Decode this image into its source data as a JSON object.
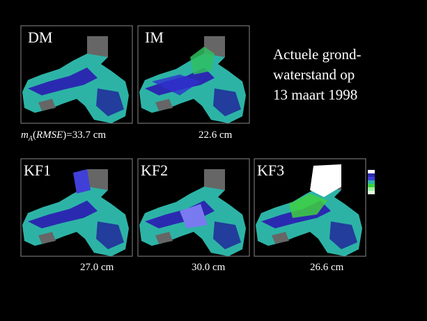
{
  "title": {
    "lines": [
      "Actuele grond-",
      "waterstand op",
      "13 maart 1998"
    ]
  },
  "panels": [
    {
      "label": "DM"
    },
    {
      "label": "IM",
      "caption": "22.6 cm"
    },
    {
      "label": "KF1",
      "caption": "27.0 cm"
    },
    {
      "label": "KF2",
      "caption": "30.0 cm"
    },
    {
      "label": "KF3",
      "caption": "26.6 cm"
    }
  ],
  "dm_caption": [
    "m",
    "A",
    "(",
    "RMSE",
    ")=33.7 cm"
  ]
}
